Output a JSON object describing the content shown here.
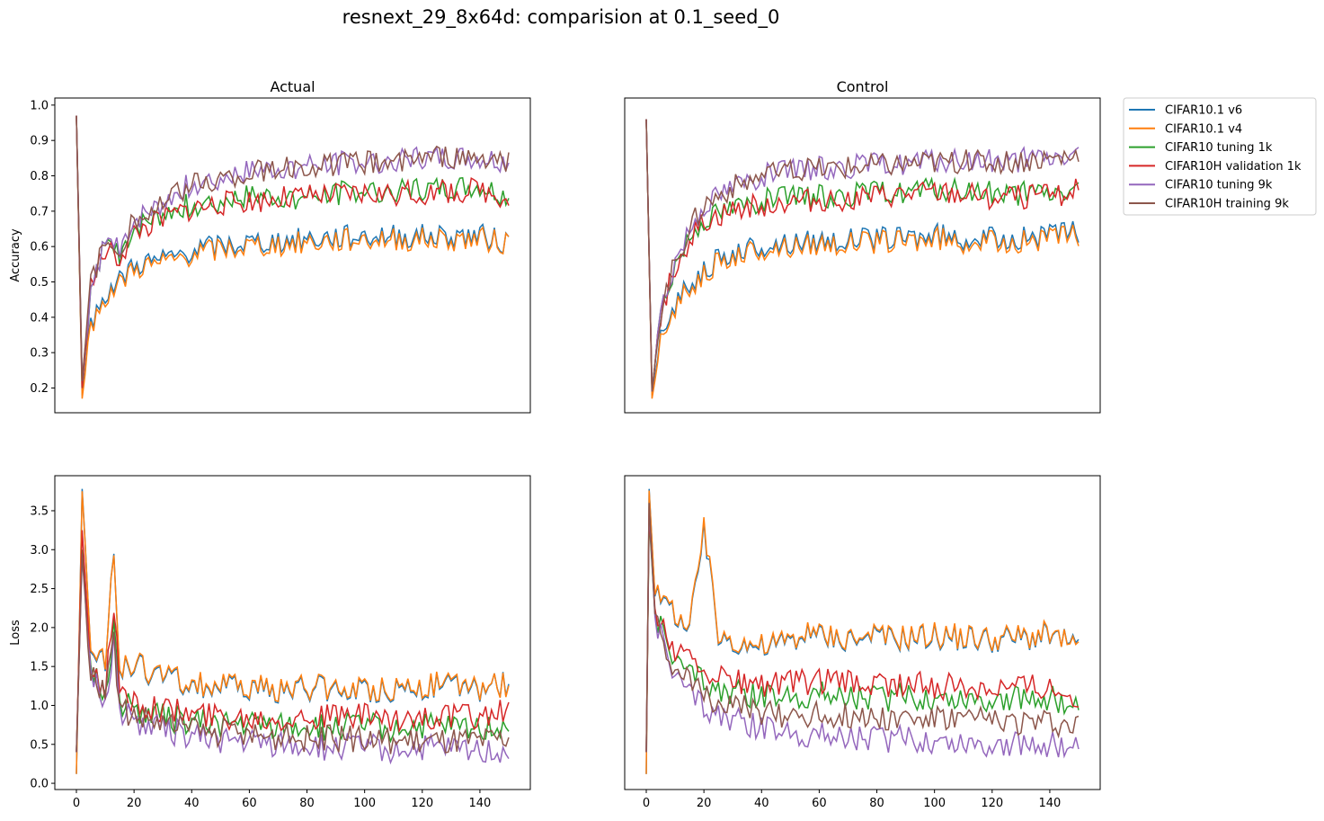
{
  "chart_data": {
    "type": "line",
    "title": "resnext_29_8x64d: comparision at 0.1_seed_0",
    "legend": {
      "placement": "outside-right",
      "entries": [
        "CIFAR10.1 v6",
        "CIFAR10.1 v4",
        "CIFAR10 tuning 1k",
        "CIFAR10H validation 1k",
        "CIFAR10 tuning 9k",
        "CIFAR10H training 9k"
      ]
    },
    "colors": {
      "CIFAR10.1 v6": "#1f77b4",
      "CIFAR10.1 v4": "#ff7f0e",
      "CIFAR10 tuning 1k": "#2ca02c",
      "CIFAR10H validation 1k": "#d62728",
      "CIFAR10 tuning 9k": "#9467bd",
      "CIFAR10H training 9k": "#8c564b"
    },
    "x_range": [
      0,
      150
    ],
    "subplots": [
      {
        "id": "acc-actual",
        "title": "Actual",
        "ylabel": "Accuracy",
        "ylim": [
          0.13,
          1.02
        ],
        "yticks": [
          "0.2",
          "0.3",
          "0.4",
          "0.5",
          "0.6",
          "0.7",
          "0.8",
          "0.9",
          "1.0"
        ],
        "show_yticks": true,
        "show_xticks": false,
        "series": [
          {
            "name": "CIFAR10.1 v6",
            "x": [
              0,
              2,
              5,
              10,
              15,
              20,
              30,
              40,
              60,
              80,
              100,
              120,
              140,
              150
            ],
            "y": [
              0.97,
              0.18,
              0.38,
              0.47,
              0.5,
              0.55,
              0.56,
              0.59,
              0.61,
              0.62,
              0.63,
              0.63,
              0.63,
              0.61
            ]
          },
          {
            "name": "CIFAR10.1 v4",
            "x": [
              0,
              2,
              5,
              10,
              15,
              20,
              30,
              40,
              60,
              80,
              100,
              120,
              140,
              150
            ],
            "y": [
              0.97,
              0.17,
              0.37,
              0.46,
              0.49,
              0.54,
              0.55,
              0.58,
              0.6,
              0.61,
              0.62,
              0.62,
              0.62,
              0.61
            ]
          },
          {
            "name": "CIFAR10 tuning 1k",
            "x": [
              0,
              2,
              5,
              10,
              15,
              20,
              30,
              40,
              60,
              80,
              100,
              120,
              140,
              150
            ],
            "y": [
              0.97,
              0.2,
              0.5,
              0.6,
              0.58,
              0.65,
              0.69,
              0.72,
              0.74,
              0.74,
              0.76,
              0.76,
              0.77,
              0.74
            ]
          },
          {
            "name": "CIFAR10H validation 1k",
            "x": [
              0,
              2,
              5,
              10,
              15,
              20,
              30,
              40,
              60,
              80,
              100,
              120,
              140,
              150
            ],
            "y": [
              0.97,
              0.2,
              0.49,
              0.59,
              0.57,
              0.64,
              0.68,
              0.71,
              0.73,
              0.74,
              0.75,
              0.75,
              0.76,
              0.74
            ]
          },
          {
            "name": "CIFAR10 tuning 9k",
            "x": [
              0,
              2,
              5,
              10,
              15,
              20,
              30,
              40,
              60,
              80,
              100,
              120,
              140,
              150
            ],
            "y": [
              0.97,
              0.22,
              0.5,
              0.6,
              0.6,
              0.67,
              0.72,
              0.78,
              0.81,
              0.83,
              0.84,
              0.85,
              0.85,
              0.84
            ]
          },
          {
            "name": "CIFAR10H training 9k",
            "x": [
              0,
              2,
              5,
              10,
              15,
              20,
              30,
              40,
              60,
              80,
              100,
              120,
              140,
              150
            ],
            "y": [
              0.97,
              0.22,
              0.5,
              0.6,
              0.6,
              0.67,
              0.72,
              0.78,
              0.81,
              0.83,
              0.84,
              0.85,
              0.85,
              0.84
            ]
          }
        ]
      },
      {
        "id": "acc-control",
        "title": "Control",
        "ylabel": "",
        "ylim": [
          0.13,
          1.02
        ],
        "yticks": [],
        "show_yticks": false,
        "show_xticks": false,
        "series": [
          {
            "name": "CIFAR10.1 v6",
            "x": [
              0,
              2,
              5,
              10,
              15,
              20,
              30,
              40,
              60,
              80,
              100,
              120,
              140,
              150
            ],
            "y": [
              0.96,
              0.18,
              0.33,
              0.44,
              0.49,
              0.54,
              0.58,
              0.6,
              0.62,
              0.62,
              0.63,
              0.62,
              0.63,
              0.64
            ]
          },
          {
            "name": "CIFAR10.1 v4",
            "x": [
              0,
              2,
              5,
              10,
              15,
              20,
              30,
              40,
              60,
              80,
              100,
              120,
              140,
              150
            ],
            "y": [
              0.96,
              0.17,
              0.32,
              0.43,
              0.48,
              0.53,
              0.57,
              0.59,
              0.61,
              0.61,
              0.62,
              0.61,
              0.62,
              0.63
            ]
          },
          {
            "name": "CIFAR10 tuning 1k",
            "x": [
              0,
              2,
              5,
              10,
              15,
              20,
              30,
              40,
              60,
              80,
              100,
              120,
              140,
              150
            ],
            "y": [
              0.96,
              0.19,
              0.42,
              0.55,
              0.63,
              0.68,
              0.71,
              0.73,
              0.74,
              0.75,
              0.76,
              0.75,
              0.75,
              0.76
            ]
          },
          {
            "name": "CIFAR10H validation 1k",
            "x": [
              0,
              2,
              5,
              10,
              15,
              20,
              30,
              40,
              60,
              80,
              100,
              120,
              140,
              150
            ],
            "y": [
              0.96,
              0.19,
              0.41,
              0.54,
              0.62,
              0.67,
              0.7,
              0.72,
              0.73,
              0.74,
              0.75,
              0.74,
              0.74,
              0.76
            ]
          },
          {
            "name": "CIFAR10 tuning 9k",
            "x": [
              0,
              2,
              5,
              10,
              15,
              20,
              30,
              40,
              60,
              80,
              100,
              120,
              140,
              150
            ],
            "y": [
              0.96,
              0.19,
              0.42,
              0.56,
              0.65,
              0.72,
              0.77,
              0.8,
              0.82,
              0.83,
              0.84,
              0.84,
              0.85,
              0.86
            ]
          },
          {
            "name": "CIFAR10H training 9k",
            "x": [
              0,
              2,
              5,
              10,
              15,
              20,
              30,
              40,
              60,
              80,
              100,
              120,
              140,
              150
            ],
            "y": [
              0.96,
              0.19,
              0.42,
              0.56,
              0.65,
              0.72,
              0.77,
              0.8,
              0.82,
              0.83,
              0.84,
              0.84,
              0.85,
              0.86
            ]
          }
        ]
      },
      {
        "id": "loss-actual",
        "title": "",
        "ylabel": "Loss",
        "ylim": [
          -0.08,
          3.95
        ],
        "yticks": [
          "0.0",
          "0.5",
          "1.0",
          "1.5",
          "2.0",
          "2.5",
          "3.0",
          "3.5"
        ],
        "show_yticks": true,
        "show_xticks": true,
        "xticks": [
          "0",
          "20",
          "40",
          "60",
          "80",
          "100",
          "120",
          "140"
        ],
        "series": [
          {
            "name": "CIFAR10.1 v6",
            "x": [
              0,
              2,
              5,
              10,
              13,
              15,
              20,
              30,
              40,
              60,
              80,
              100,
              120,
              140,
              150
            ],
            "y": [
              0.12,
              3.78,
              1.8,
              1.6,
              2.9,
              1.45,
              1.5,
              1.35,
              1.25,
              1.2,
              1.2,
              1.2,
              1.25,
              1.2,
              1.3
            ]
          },
          {
            "name": "CIFAR10.1 v4",
            "x": [
              0,
              2,
              5,
              10,
              13,
              15,
              20,
              30,
              40,
              60,
              80,
              100,
              120,
              140,
              150
            ],
            "y": [
              0.12,
              3.75,
              1.82,
              1.62,
              2.88,
              1.47,
              1.52,
              1.37,
              1.27,
              1.22,
              1.22,
              1.22,
              1.27,
              1.22,
              1.28
            ]
          },
          {
            "name": "CIFAR10 tuning 1k",
            "x": [
              0,
              2,
              5,
              10,
              13,
              15,
              20,
              30,
              40,
              60,
              80,
              100,
              120,
              140,
              150
            ],
            "y": [
              0.4,
              3.0,
              1.45,
              1.15,
              2.0,
              1.05,
              0.95,
              0.85,
              0.78,
              0.75,
              0.73,
              0.72,
              0.72,
              0.7,
              0.8
            ]
          },
          {
            "name": "CIFAR10H validation 1k",
            "x": [
              0,
              2,
              5,
              10,
              13,
              15,
              20,
              30,
              40,
              60,
              80,
              100,
              120,
              140,
              150
            ],
            "y": [
              0.4,
              3.25,
              1.5,
              1.2,
              2.35,
              1.1,
              1.05,
              0.95,
              0.88,
              0.85,
              0.85,
              0.85,
              0.85,
              0.85,
              0.92
            ]
          },
          {
            "name": "CIFAR10 tuning 9k",
            "x": [
              0,
              2,
              5,
              10,
              13,
              15,
              20,
              30,
              40,
              60,
              80,
              100,
              120,
              140,
              150
            ],
            "y": [
              0.4,
              2.9,
              1.4,
              1.05,
              1.8,
              0.95,
              0.8,
              0.7,
              0.6,
              0.52,
              0.48,
              0.45,
              0.44,
              0.42,
              0.45
            ]
          },
          {
            "name": "CIFAR10H training 9k",
            "x": [
              0,
              2,
              5,
              10,
              13,
              15,
              20,
              30,
              40,
              60,
              80,
              100,
              120,
              140,
              150
            ],
            "y": [
              0.4,
              2.95,
              1.42,
              1.08,
              1.85,
              0.98,
              0.88,
              0.78,
              0.68,
              0.62,
              0.58,
              0.56,
              0.55,
              0.53,
              0.57
            ]
          }
        ]
      },
      {
        "id": "loss-control",
        "title": "",
        "ylabel": "",
        "ylim": [
          -0.08,
          3.95
        ],
        "yticks": [],
        "show_yticks": false,
        "show_xticks": true,
        "xticks": [
          "0",
          "20",
          "40",
          "60",
          "80",
          "100",
          "120",
          "140"
        ],
        "series": [
          {
            "name": "CIFAR10.1 v6",
            "x": [
              0,
              1,
              3,
              5,
              10,
              15,
              20,
              25,
              30,
              40,
              60,
              80,
              100,
              120,
              140,
              150
            ],
            "y": [
              0.12,
              3.78,
              2.4,
              2.35,
              2.2,
              1.95,
              3.25,
              1.9,
              1.85,
              1.75,
              1.9,
              1.85,
              1.9,
              1.85,
              1.9,
              1.75
            ]
          },
          {
            "name": "CIFAR10.1 v4",
            "x": [
              0,
              1,
              3,
              5,
              10,
              15,
              20,
              25,
              30,
              40,
              60,
              80,
              100,
              120,
              140,
              150
            ],
            "y": [
              0.12,
              3.76,
              2.42,
              2.37,
              2.22,
              1.97,
              3.3,
              1.92,
              1.87,
              1.77,
              1.92,
              1.87,
              1.92,
              1.87,
              1.92,
              1.72
            ]
          },
          {
            "name": "CIFAR10 tuning 1k",
            "x": [
              0,
              1,
              3,
              5,
              10,
              15,
              20,
              25,
              30,
              40,
              60,
              80,
              100,
              120,
              140,
              150
            ],
            "y": [
              0.4,
              3.4,
              2.2,
              2.0,
              1.55,
              1.4,
              1.35,
              1.2,
              1.15,
              1.1,
              1.15,
              1.1,
              1.1,
              1.1,
              1.1,
              0.95
            ]
          },
          {
            "name": "CIFAR10H validation 1k",
            "x": [
              0,
              1,
              3,
              5,
              10,
              15,
              20,
              25,
              30,
              40,
              60,
              80,
              100,
              120,
              140,
              150
            ],
            "y": [
              0.4,
              3.45,
              2.25,
              2.05,
              1.7,
              1.55,
              1.5,
              1.35,
              1.3,
              1.25,
              1.3,
              1.25,
              1.25,
              1.25,
              1.25,
              1.1
            ]
          },
          {
            "name": "CIFAR10 tuning 9k",
            "x": [
              0,
              1,
              3,
              5,
              10,
              15,
              20,
              25,
              30,
              40,
              60,
              80,
              100,
              120,
              140,
              150
            ],
            "y": [
              0.4,
              3.55,
              2.15,
              1.9,
              1.35,
              1.15,
              1.0,
              0.9,
              0.8,
              0.7,
              0.62,
              0.58,
              0.55,
              0.52,
              0.5,
              0.45
            ]
          },
          {
            "name": "CIFAR10H training 9k",
            "x": [
              0,
              1,
              3,
              5,
              10,
              15,
              20,
              25,
              30,
              40,
              60,
              80,
              100,
              120,
              140,
              150
            ],
            "y": [
              0.4,
              3.6,
              2.18,
              1.95,
              1.45,
              1.28,
              1.15,
              1.05,
              0.98,
              0.9,
              0.88,
              0.85,
              0.82,
              0.8,
              0.78,
              0.72
            ]
          }
        ]
      }
    ]
  }
}
